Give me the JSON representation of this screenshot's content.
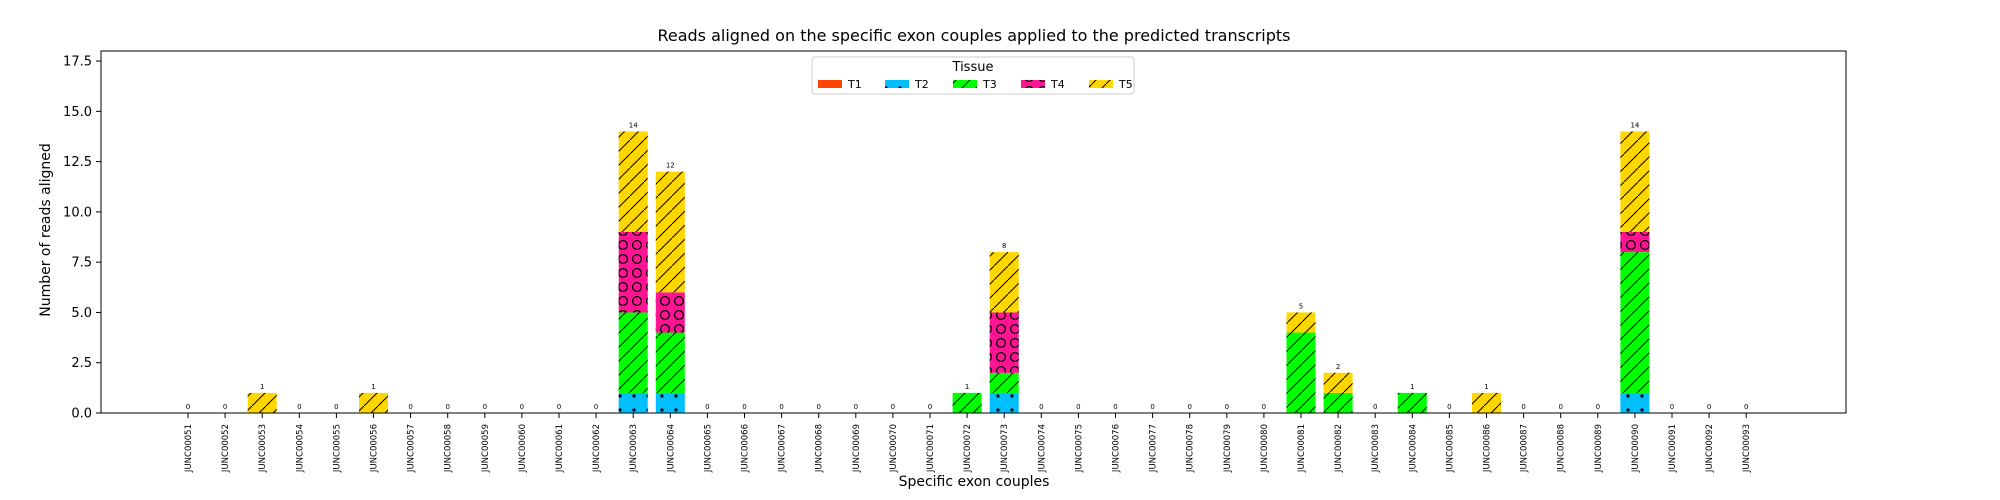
{
  "chart_data": {
    "type": "bar",
    "stacked": true,
    "title": "Reads aligned on the specific exon couples applied to the predicted transcripts",
    "xlabel": "Specific exon couples",
    "ylabel": "Number of reads aligned",
    "ylim": [
      0,
      18
    ],
    "yticks": [
      "0.0",
      "2.5",
      "5.0",
      "7.5",
      "10.0",
      "12.5",
      "15.0",
      "17.5"
    ],
    "grid": false,
    "legend": {
      "title": "Tissue",
      "placement": "top-center"
    },
    "categories": [
      "JUNC00051",
      "JUNC00052",
      "JUNC00053",
      "JUNC00054",
      "JUNC00055",
      "JUNC00056",
      "JUNC00057",
      "JUNC00058",
      "JUNC00059",
      "JUNC00060",
      "JUNC00061",
      "JUNC00062",
      "JUNC00063",
      "JUNC00064",
      "JUNC00065",
      "JUNC00066",
      "JUNC00067",
      "JUNC00068",
      "JUNC00069",
      "JUNC00070",
      "JUNC00071",
      "JUNC00072",
      "JUNC00073",
      "JUNC00074",
      "JUNC00075",
      "JUNC00076",
      "JUNC00077",
      "JUNC00078",
      "JUNC00079",
      "JUNC00080",
      "JUNC00081",
      "JUNC00082",
      "JUNC00083",
      "JUNC00084",
      "JUNC00085",
      "JUNC00086",
      "JUNC00087",
      "JUNC00088",
      "JUNC00089",
      "JUNC00090",
      "JUNC00091",
      "JUNC00092",
      "JUNC00093"
    ],
    "series": [
      {
        "name": "T1",
        "color": "#ff4500",
        "pattern": "none",
        "values": [
          0,
          0,
          0,
          0,
          0,
          0,
          0,
          0,
          0,
          0,
          0,
          0,
          0,
          0,
          0,
          0,
          0,
          0,
          0,
          0,
          0,
          0,
          0,
          0,
          0,
          0,
          0,
          0,
          0,
          0,
          0,
          0,
          0,
          0,
          0,
          0,
          0,
          0,
          0,
          0,
          0,
          0,
          0
        ]
      },
      {
        "name": "T2",
        "color": "#00bfff",
        "pattern": "dots",
        "values": [
          0,
          0,
          0,
          0,
          0,
          0,
          0,
          0,
          0,
          0,
          0,
          0,
          1,
          1,
          0,
          0,
          0,
          0,
          0,
          0,
          0,
          0,
          1,
          0,
          0,
          0,
          0,
          0,
          0,
          0,
          0,
          0,
          0,
          0,
          0,
          0,
          0,
          0,
          0,
          1,
          0,
          0,
          0
        ]
      },
      {
        "name": "T3",
        "color": "#00ff00",
        "pattern": "diagonal",
        "values": [
          0,
          0,
          0,
          0,
          0,
          0,
          0,
          0,
          0,
          0,
          0,
          0,
          4,
          3,
          0,
          0,
          0,
          0,
          0,
          0,
          0,
          1,
          1,
          0,
          0,
          0,
          0,
          0,
          0,
          0,
          4,
          1,
          0,
          1,
          0,
          0,
          0,
          0,
          0,
          7,
          0,
          0,
          0
        ]
      },
      {
        "name": "T4",
        "color": "#ff1493",
        "pattern": "circles",
        "values": [
          0,
          0,
          0,
          0,
          0,
          0,
          0,
          0,
          0,
          0,
          0,
          0,
          4,
          2,
          0,
          0,
          0,
          0,
          0,
          0,
          0,
          0,
          3,
          0,
          0,
          0,
          0,
          0,
          0,
          0,
          0,
          0,
          0,
          0,
          0,
          0,
          0,
          0,
          0,
          1,
          0,
          0,
          0
        ]
      },
      {
        "name": "T5",
        "color": "#ffd700",
        "pattern": "diagonal",
        "values": [
          0,
          0,
          1,
          0,
          0,
          1,
          0,
          0,
          0,
          0,
          0,
          0,
          5,
          6,
          0,
          0,
          0,
          0,
          0,
          0,
          0,
          0,
          3,
          0,
          0,
          0,
          0,
          0,
          0,
          0,
          1,
          1,
          0,
          0,
          0,
          1,
          0,
          0,
          0,
          5,
          0,
          0,
          0
        ]
      }
    ],
    "totals": [
      0,
      0,
      1,
      0,
      0,
      1,
      0,
      0,
      0,
      0,
      0,
      0,
      14,
      12,
      0,
      0,
      0,
      0,
      0,
      0,
      0,
      1,
      8,
      0,
      0,
      0,
      0,
      0,
      0,
      0,
      5,
      2,
      0,
      1,
      0,
      1,
      0,
      0,
      0,
      14,
      0,
      0,
      0
    ]
  }
}
